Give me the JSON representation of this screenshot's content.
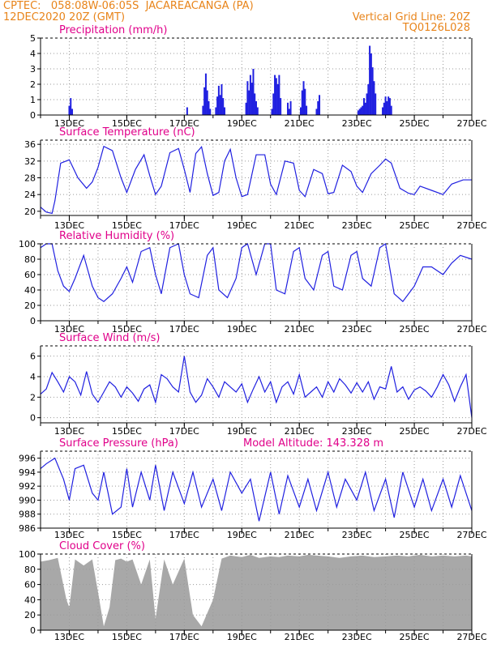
{
  "header": {
    "line1": "CPTEC:   058:08W-06:05S  JACAREACANGA (PA)",
    "line2": "12DEC2020 20Z (GMT)",
    "grid_note": "Vertical Grid Line: 20Z",
    "code": "TQ0126L028"
  },
  "colors": {
    "header": "#e8841a",
    "title": "#e0008a",
    "series": "#2020e0",
    "cloud": "#a8a8a8",
    "grid": "#9a9a9a"
  },
  "chart_data": [
    {
      "type": "bar",
      "title": "Precipitation (mm/h)",
      "x_tick_labels": [
        "13DEC",
        "15DEC",
        "17DEC",
        "19DEC",
        "21DEC",
        "23DEC",
        "25DEC",
        "27DEC"
      ],
      "ylim": [
        0,
        5
      ],
      "y_ticks": [
        0,
        1,
        2,
        3,
        4,
        5
      ],
      "x": [
        1.0,
        1.05,
        1.1,
        5.1,
        5.65,
        5.7,
        5.75,
        5.8,
        5.85,
        5.9,
        6.1,
        6.15,
        6.2,
        6.25,
        6.3,
        6.35,
        6.4,
        7.15,
        7.2,
        7.25,
        7.3,
        7.35,
        7.4,
        7.45,
        7.5,
        7.55,
        8.05,
        8.1,
        8.15,
        8.2,
        8.25,
        8.3,
        8.35,
        8.6,
        8.65,
        8.7,
        9.05,
        9.1,
        9.15,
        9.2,
        9.25,
        9.6,
        9.65,
        9.7,
        11.05,
        11.1,
        11.15,
        11.2,
        11.25,
        11.3,
        11.35,
        11.4,
        11.45,
        11.5,
        11.55,
        11.6,
        11.65,
        11.9,
        11.95,
        12.0,
        12.05,
        12.1,
        12.15,
        12.2
      ],
      "values": [
        0.6,
        1.1,
        0.4,
        0.5,
        0.6,
        1.8,
        2.7,
        1.6,
        0.9,
        0.4,
        0.5,
        1.2,
        1.9,
        1.3,
        2.0,
        1.1,
        0.5,
        0.8,
        2.2,
        1.6,
        2.6,
        2.1,
        3.0,
        1.4,
        0.9,
        0.5,
        0.4,
        1.4,
        2.6,
        2.4,
        2.0,
        2.6,
        1.1,
        0.8,
        0.4,
        0.9,
        0.5,
        1.6,
        2.2,
        1.7,
        0.6,
        0.4,
        0.9,
        1.3,
        0.3,
        0.4,
        0.5,
        0.6,
        1.1,
        0.8,
        1.4,
        2.0,
        4.5,
        4.0,
        3.1,
        2.2,
        1.4,
        0.5,
        0.8,
        1.2,
        0.9,
        1.2,
        1.1,
        0.6
      ]
    },
    {
      "type": "line",
      "title": "Surface Temperature (nC)",
      "x_tick_labels": [
        "13DEC",
        "15DEC",
        "17DEC",
        "19DEC",
        "21DEC",
        "23DEC",
        "25DEC",
        "27DEC"
      ],
      "ylim": [
        19,
        37
      ],
      "y_ticks": [
        20,
        24,
        28,
        32,
        36
      ],
      "x": [
        0,
        0.2,
        0.4,
        0.5,
        0.7,
        1.0,
        1.3,
        1.6,
        1.8,
        2.0,
        2.2,
        2.5,
        2.8,
        3.0,
        3.3,
        3.6,
        3.8,
        4.0,
        4.2,
        4.5,
        4.8,
        5.0,
        5.2,
        5.4,
        5.6,
        5.8,
        6.0,
        6.2,
        6.4,
        6.6,
        6.8,
        7.0,
        7.2,
        7.5,
        7.8,
        8.0,
        8.2,
        8.5,
        8.8,
        9.0,
        9.2,
        9.5,
        9.8,
        10.0,
        10.2,
        10.5,
        10.8,
        11.0,
        11.2,
        11.5,
        11.8,
        12.0,
        12.2,
        12.5,
        12.8,
        13.0,
        13.2,
        13.6,
        14.0,
        14.3,
        14.7,
        15.0
      ],
      "values": [
        21,
        19.8,
        19.5,
        22.5,
        31.5,
        32.3,
        28,
        25.5,
        27,
        30.5,
        35.5,
        34.5,
        28,
        24.5,
        30,
        33.5,
        28.5,
        24,
        26,
        34,
        35,
        30,
        24.5,
        33.8,
        35.4,
        29,
        23.8,
        24.5,
        32,
        34.8,
        28,
        23.5,
        24,
        33.5,
        33.5,
        26.5,
        24,
        32,
        31.5,
        25,
        23.5,
        30,
        29,
        24.2,
        24.5,
        31,
        29.5,
        26,
        24.5,
        29,
        31,
        32.5,
        31.5,
        25.5,
        24.3,
        24,
        26,
        25,
        24,
        26.5,
        27.5,
        27.5
      ]
    },
    {
      "type": "line",
      "title": "Relative Humidity (%)",
      "x_tick_labels": [
        "13DEC",
        "15DEC",
        "17DEC",
        "19DEC",
        "21DEC",
        "23DEC",
        "25DEC",
        "27DEC"
      ],
      "ylim": [
        0,
        100
      ],
      "y_ticks": [
        0,
        20,
        40,
        60,
        80,
        100
      ],
      "x": [
        0,
        0.2,
        0.4,
        0.6,
        0.8,
        1.0,
        1.2,
        1.5,
        1.8,
        2.0,
        2.2,
        2.5,
        2.8,
        3.0,
        3.2,
        3.5,
        3.8,
        4.0,
        4.2,
        4.5,
        4.8,
        5.0,
        5.2,
        5.5,
        5.8,
        6.0,
        6.2,
        6.5,
        6.8,
        7.0,
        7.2,
        7.5,
        7.8,
        8.0,
        8.2,
        8.5,
        8.8,
        9.0,
        9.2,
        9.5,
        9.8,
        10.0,
        10.2,
        10.5,
        10.8,
        11.0,
        11.2,
        11.5,
        11.8,
        12.0,
        12.3,
        12.6,
        13.0,
        13.3,
        13.6,
        14.0,
        14.3,
        14.6,
        15.0
      ],
      "values": [
        95,
        100,
        100,
        65,
        45,
        38,
        55,
        85,
        45,
        30,
        25,
        35,
        55,
        70,
        50,
        90,
        95,
        60,
        35,
        95,
        100,
        60,
        35,
        30,
        85,
        95,
        40,
        30,
        55,
        95,
        100,
        60,
        100,
        100,
        40,
        35,
        90,
        95,
        55,
        40,
        85,
        90,
        45,
        40,
        85,
        90,
        55,
        45,
        95,
        100,
        35,
        25,
        45,
        70,
        70,
        60,
        75,
        85,
        80
      ]
    },
    {
      "type": "line",
      "title": "Surface Wind (m/s)",
      "x_tick_labels": [
        "13DEC",
        "15DEC",
        "17DEC",
        "19DEC",
        "21DEC",
        "23DEC",
        "25DEC",
        "27DEC"
      ],
      "ylim": [
        -0.5,
        7
      ],
      "y_ticks": [
        0,
        2,
        4,
        6
      ],
      "x": [
        0,
        0.2,
        0.4,
        0.6,
        0.8,
        1.0,
        1.2,
        1.4,
        1.6,
        1.8,
        2.0,
        2.2,
        2.4,
        2.6,
        2.8,
        3.0,
        3.2,
        3.4,
        3.6,
        3.8,
        4.0,
        4.2,
        4.4,
        4.6,
        4.8,
        5.0,
        5.2,
        5.4,
        5.6,
        5.8,
        6.0,
        6.2,
        6.4,
        6.6,
        6.8,
        7.0,
        7.2,
        7.4,
        7.6,
        7.8,
        8.0,
        8.2,
        8.4,
        8.6,
        8.8,
        9.0,
        9.2,
        9.4,
        9.6,
        9.8,
        10.0,
        10.2,
        10.4,
        10.6,
        10.8,
        11.0,
        11.2,
        11.4,
        11.6,
        11.8,
        12.0,
        12.2,
        12.4,
        12.6,
        12.8,
        13.0,
        13.2,
        13.4,
        13.6,
        13.8,
        14.0,
        14.2,
        14.4,
        14.6,
        14.8,
        15.0
      ],
      "values": [
        2.3,
        2.8,
        4.4,
        3.5,
        2.5,
        4.0,
        3.5,
        2.2,
        4.5,
        2.3,
        1.5,
        2.5,
        3.5,
        3.0,
        2.0,
        3.0,
        2.4,
        1.6,
        2.8,
        3.2,
        1.5,
        4.2,
        3.8,
        3.0,
        2.5,
        6.0,
        2.5,
        1.5,
        2.2,
        3.8,
        3.0,
        2.0,
        3.5,
        3.0,
        2.5,
        3.3,
        1.5,
        2.8,
        4.0,
        2.5,
        3.5,
        1.5,
        3.0,
        3.5,
        2.3,
        4.2,
        2.0,
        2.5,
        3.0,
        2.0,
        3.5,
        2.5,
        3.8,
        3.2,
        2.4,
        3.4,
        2.5,
        3.5,
        1.8,
        3.0,
        2.8,
        5.0,
        2.5,
        3.0,
        1.8,
        2.7,
        3.0,
        2.6,
        2.0,
        3.0,
        4.2,
        3.2,
        1.6,
        3.0,
        4.2,
        0.0
      ]
    },
    {
      "type": "line",
      "title": "Surface Pressure (hPa)",
      "annotation": "Model Altitude: 143.328 m",
      "x_tick_labels": [
        "13DEC",
        "15DEC",
        "17DEC",
        "19DEC",
        "21DEC",
        "23DEC",
        "25DEC",
        "27DEC"
      ],
      "ylim": [
        986,
        997
      ],
      "y_ticks": [
        986,
        988,
        990,
        992,
        994,
        996
      ],
      "x": [
        0,
        0.2,
        0.5,
        0.8,
        1.0,
        1.2,
        1.5,
        1.8,
        2.0,
        2.2,
        2.5,
        2.8,
        3.0,
        3.2,
        3.5,
        3.8,
        4.0,
        4.3,
        4.6,
        5.0,
        5.3,
        5.6,
        6.0,
        6.3,
        6.6,
        7.0,
        7.3,
        7.6,
        8.0,
        8.3,
        8.6,
        9.0,
        9.3,
        9.6,
        10.0,
        10.3,
        10.6,
        11.0,
        11.3,
        11.6,
        12.0,
        12.3,
        12.6,
        13.0,
        13.3,
        13.6,
        14.0,
        14.3,
        14.6,
        15.0
      ],
      "values": [
        994.5,
        995.2,
        996,
        993,
        990,
        994.5,
        995,
        991,
        990,
        994,
        988,
        989,
        994.5,
        989,
        994,
        990,
        995,
        988.5,
        994,
        989.5,
        994,
        989,
        993,
        988.5,
        994,
        991,
        993,
        987,
        994,
        988,
        993.5,
        989,
        993,
        988.5,
        994,
        989,
        993,
        990,
        994,
        988.5,
        993,
        987.5,
        994,
        989,
        993,
        988.5,
        993,
        989,
        993.5,
        988.5
      ]
    },
    {
      "type": "area",
      "title": "Cloud Cover (%)",
      "x_tick_labels": [
        "13DEC",
        "15DEC",
        "17DEC",
        "19DEC",
        "21DEC",
        "23DEC",
        "25DEC",
        "27DEC"
      ],
      "ylim": [
        0,
        100
      ],
      "y_ticks": [
        0,
        20,
        40,
        60,
        80,
        100
      ],
      "x": [
        0,
        0.3,
        0.6,
        0.9,
        1.0,
        1.2,
        1.5,
        1.8,
        2.0,
        2.2,
        2.4,
        2.6,
        2.8,
        3.0,
        3.2,
        3.5,
        3.8,
        4.0,
        4.3,
        4.6,
        5.0,
        5.3,
        5.6,
        6.0,
        6.3,
        6.6,
        7.0,
        7.3,
        7.6,
        8.0,
        8.3,
        8.6,
        9.0,
        9.3,
        9.6,
        10.0,
        10.4,
        10.8,
        11.2,
        11.6,
        12.0,
        12.4,
        12.8,
        13.2,
        13.6,
        14.0,
        14.4,
        14.8,
        15.0
      ],
      "values": [
        90,
        92,
        95,
        40,
        30,
        93,
        85,
        93,
        50,
        5,
        30,
        92,
        94,
        90,
        93,
        60,
        93,
        15,
        93,
        60,
        94,
        20,
        5,
        40,
        94,
        98,
        96,
        99,
        95,
        97,
        96,
        98,
        97,
        99,
        98,
        97,
        95,
        97,
        98,
        96,
        97,
        98,
        97,
        99,
        97,
        98,
        97,
        98,
        97
      ]
    }
  ]
}
